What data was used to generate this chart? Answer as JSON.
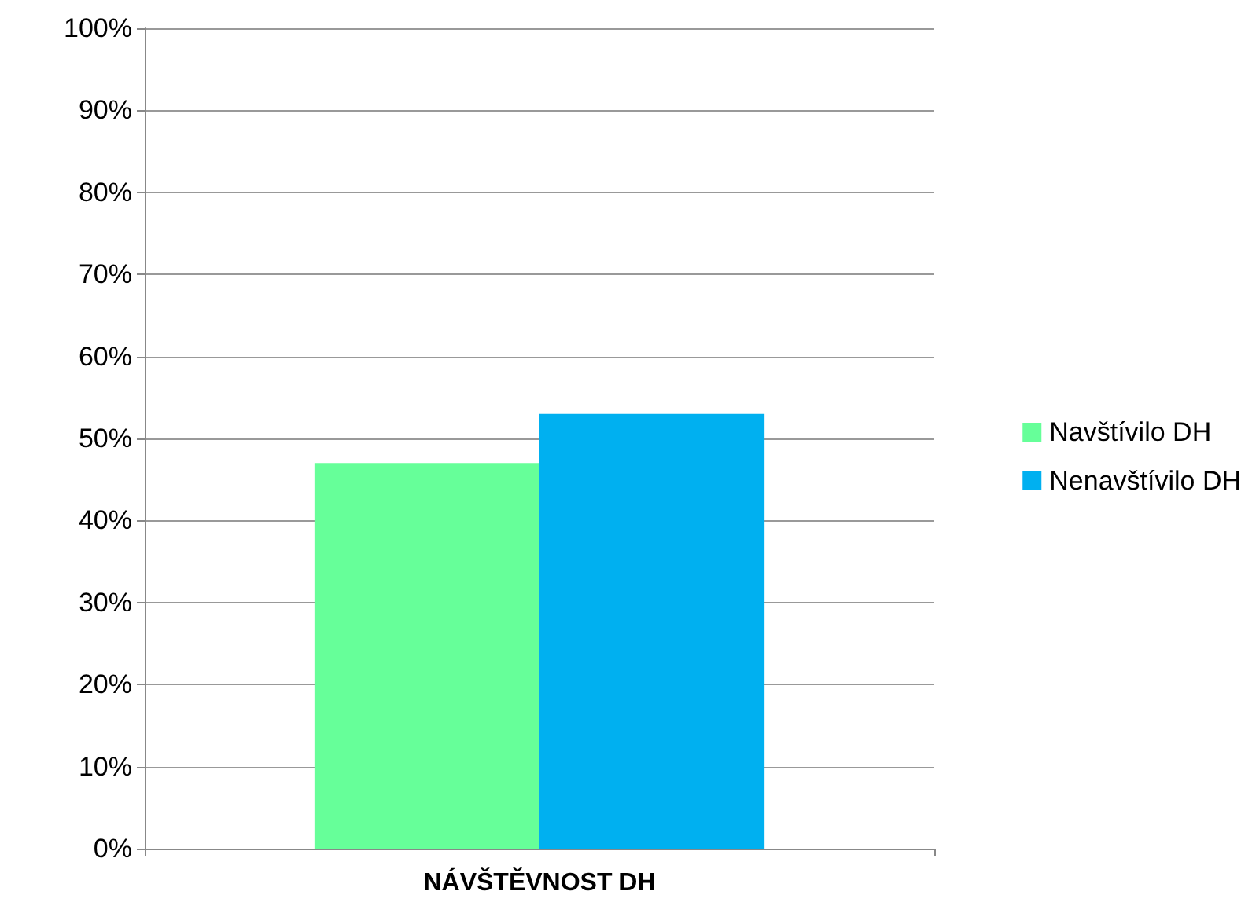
{
  "chart_data": {
    "type": "bar",
    "categories": [
      "NÁVŠTĚVNOST DH"
    ],
    "series": [
      {
        "name": "Navštívilo DH",
        "color": "#66ff99",
        "values": [
          47
        ]
      },
      {
        "name": "Nenavštívilo DH",
        "color": "#00b0f0",
        "values": [
          53
        ]
      }
    ],
    "ylim": [
      0,
      100
    ],
    "yticks": [
      {
        "value": 0,
        "label": "0%"
      },
      {
        "value": 10,
        "label": "10%"
      },
      {
        "value": 20,
        "label": "20%"
      },
      {
        "value": 30,
        "label": "30%"
      },
      {
        "value": 40,
        "label": "40%"
      },
      {
        "value": 50,
        "label": "50%"
      },
      {
        "value": 60,
        "label": "60%"
      },
      {
        "value": 70,
        "label": "70%"
      },
      {
        "value": 80,
        "label": "80%"
      },
      {
        "value": 90,
        "label": "90%"
      },
      {
        "value": 100,
        "label": "100%"
      }
    ],
    "grid": "y",
    "legend": "right"
  }
}
